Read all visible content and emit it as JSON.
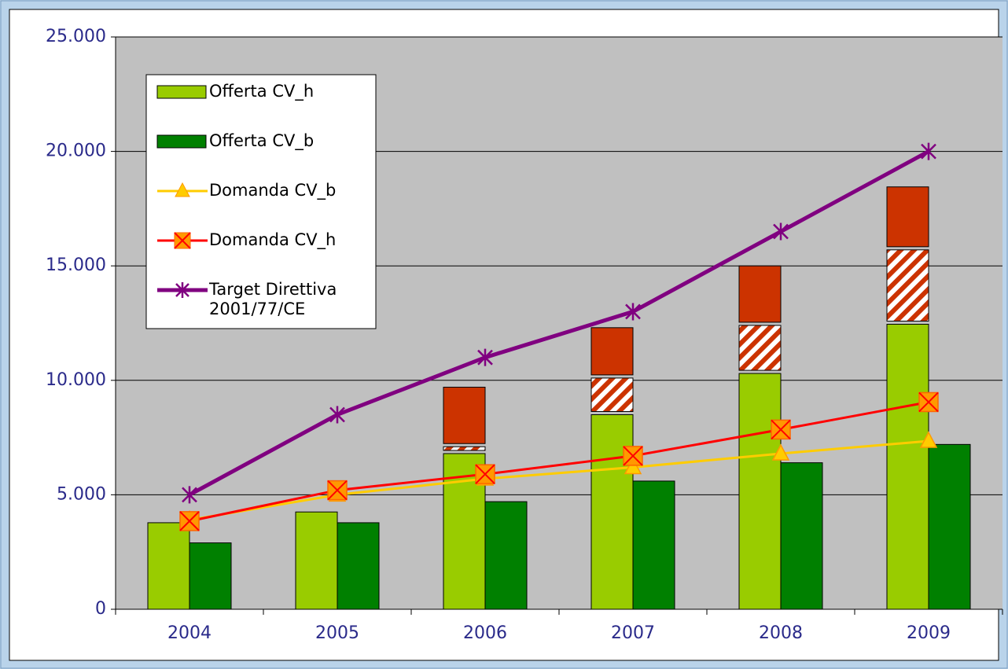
{
  "chart_data": {
    "type": "bar",
    "categories": [
      "2004",
      "2005",
      "2006",
      "2007",
      "2008",
      "2009"
    ],
    "ylim": [
      0,
      25000
    ],
    "yticks": [
      0,
      {
        "value": 5000,
        "label": "5.000"
      },
      {
        "value": 10000,
        "label": "10.000"
      },
      {
        "value": 15000,
        "label": "15.000"
      },
      {
        "value": 20000,
        "label": "20.000"
      },
      {
        "value": 25000,
        "label": "25.000"
      }
    ],
    "grid": true,
    "legend": "upper left",
    "series": [
      {
        "name": "Offerta CV_h",
        "type": "bar",
        "stack": "a",
        "color": "#99cc00",
        "values": [
          3780,
          4250,
          6800,
          8500,
          10300,
          12450
        ]
      },
      {
        "name": "Offerta CV_b",
        "type": "bar",
        "stack": "b",
        "color": "#008000",
        "values": [
          2900,
          3780,
          4700,
          5600,
          6400,
          7200
        ]
      },
      {
        "type": "bar",
        "stack": "a",
        "color": "#cc3300",
        "pattern": "hatch",
        "values": [
          null,
          null,
          300,
          1600,
          2100,
          3250
        ]
      },
      {
        "type": "bar",
        "stack": "a",
        "color": "#cc3300",
        "values": [
          null,
          null,
          2600,
          2200,
          2600,
          2750
        ]
      },
      {
        "name": "Domanda CV_b",
        "type": "line",
        "marker": "triangle",
        "color": "#ffcc00",
        "values": [
          3900,
          5000,
          5700,
          6200,
          6800,
          7350
        ]
      },
      {
        "name": "Domanda CV_h",
        "type": "line",
        "marker": "square",
        "color": "#ff0000",
        "values": [
          3850,
          5200,
          5900,
          6700,
          7850,
          9050
        ]
      },
      {
        "name": "Target Direttiva 2001/77/CE",
        "type": "line",
        "marker": "star",
        "color": "#800080",
        "values": [
          5000,
          8500,
          11000,
          13000,
          16500,
          20000
        ]
      }
    ]
  }
}
